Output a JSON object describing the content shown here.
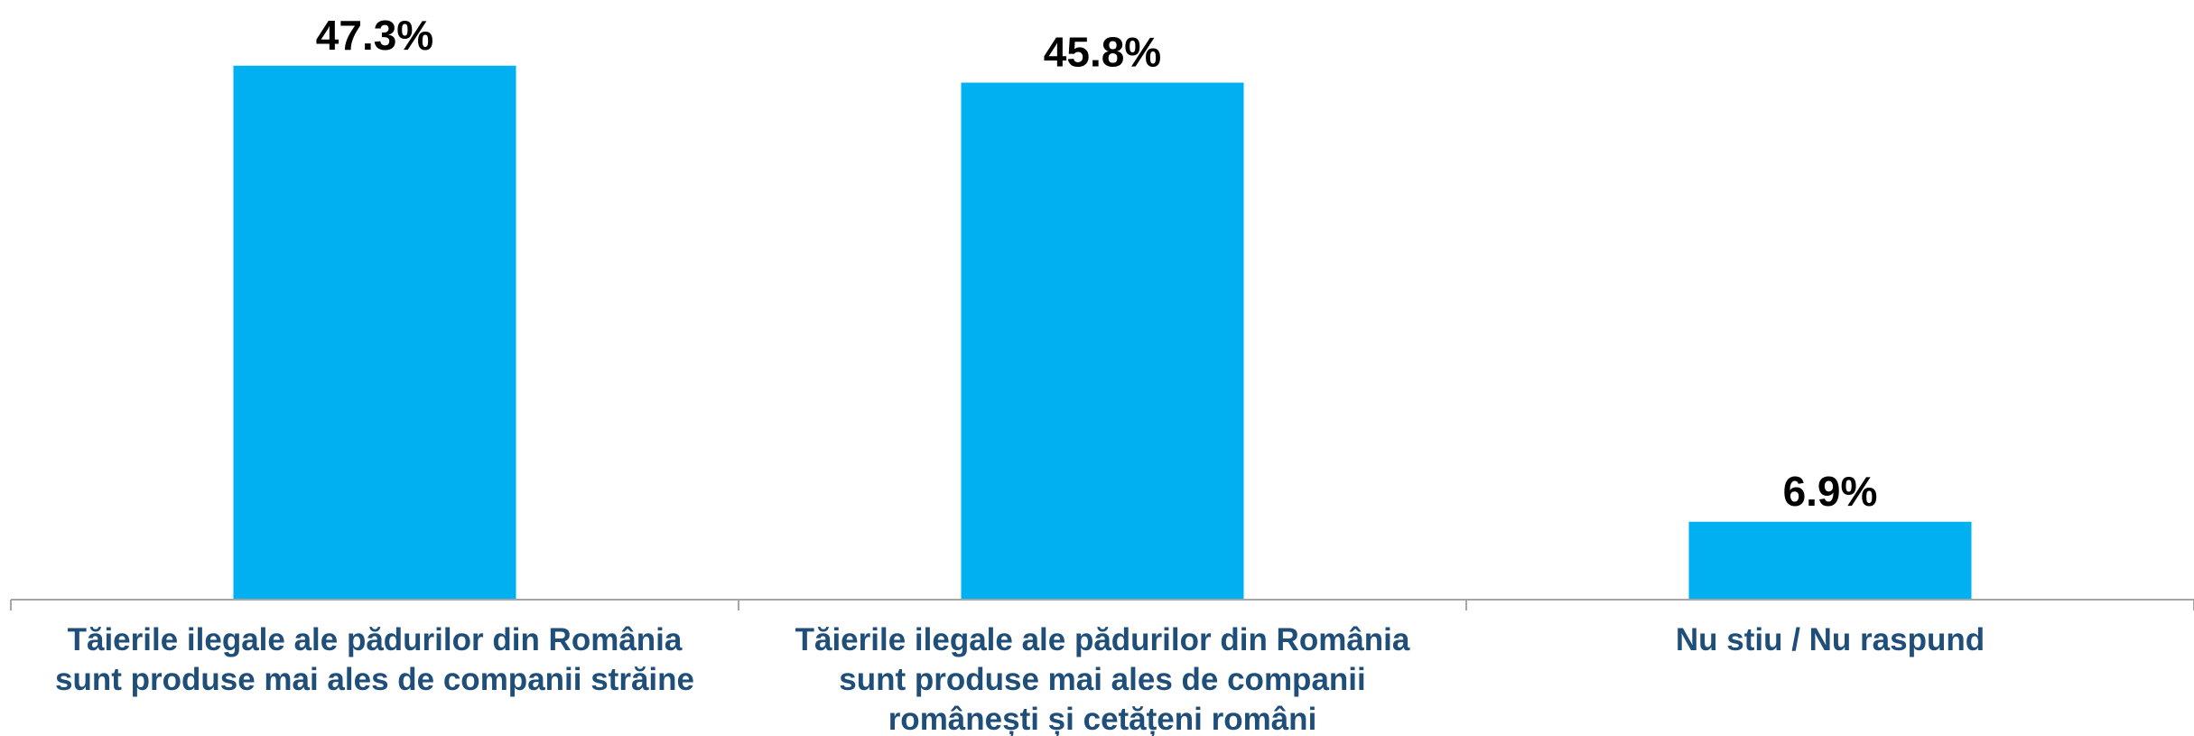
{
  "chart_data": {
    "type": "bar",
    "categories": [
      [
        "Tăierile ilegale ale pădurilor din România",
        "sunt produse mai ales de companii străine"
      ],
      [
        "Tăierile ilegale ale pădurilor din România",
        "sunt produse mai ales de companii",
        "românești și cetățeni români"
      ],
      [
        "Nu stiu / Nu raspund"
      ]
    ],
    "values": [
      47.3,
      45.8,
      6.9
    ],
    "value_labels": [
      "47.3%",
      "45.8%",
      "6.9%"
    ],
    "ylim": [
      0,
      50
    ],
    "grid": false,
    "legend": "none",
    "colors": {
      "bar": "#00b0f0",
      "axis": "#a6a6a6",
      "value_label": "#000000",
      "category_label": "#1f4e79"
    }
  }
}
